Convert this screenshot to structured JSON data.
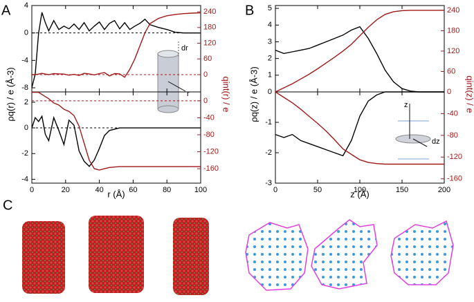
{
  "chart_data": [
    {
      "type": "line",
      "label": "A",
      "xlabel": "r (Å)",
      "ylabel": "ρq(r) / e (Å-3)",
      "y2label": "qint(r) / e",
      "xlim": [
        0,
        100
      ],
      "xticks": [
        0,
        20,
        40,
        60,
        80,
        100
      ],
      "x": [
        0,
        2,
        4,
        6,
        8,
        10,
        13,
        16,
        19,
        22,
        25,
        28,
        31,
        34,
        37,
        40,
        43,
        46,
        49,
        52,
        55,
        58,
        61,
        64,
        67,
        70,
        75,
        80,
        85,
        90,
        95,
        100
      ],
      "inset_labels": [
        "dr",
        "r"
      ],
      "subplots": [
        {
          "ylim": [
            -8.6,
            4
          ],
          "yticks": [
            -8,
            -4,
            0,
            4
          ],
          "y2lim": [
            -66,
            264
          ],
          "y2ticks": [
            0,
            60,
            120,
            180,
            240
          ],
          "hlines": [
            {
              "axis": "y",
              "value": 0,
              "color": "#000000"
            },
            {
              "axis": "y2",
              "value": 0,
              "color": "#a01818"
            }
          ],
          "series": [
            {
              "color": "#000000",
              "values": [
                -8,
                -6,
                0,
                3,
                1.5,
                0.3,
                1.8,
                0.5,
                1,
                0.6,
                1.3,
                0.5,
                1.5,
                0.3,
                1,
                1.6,
                0.5,
                1.4,
                1.8,
                0.6,
                1.5,
                0.5,
                1,
                1.4,
                2,
                1.2,
                0.8,
                0.5,
                0.1,
                0,
                0,
                0
              ]
            },
            {
              "color": "#a01818",
              "axis": "y2",
              "values": [
                0,
                0,
                2,
                5,
                2,
                0,
                4,
                3,
                2,
                -2,
                1,
                -3,
                5,
                3,
                -1,
                4,
                8,
                -5,
                4,
                3,
                -10,
                20,
                60,
                110,
                160,
                195,
                215,
                225,
                230,
                233,
                235,
                236
              ]
            }
          ]
        },
        {
          "ylim": [
            -4.3,
            2.8
          ],
          "yticks": [
            -4,
            -2,
            0,
            2
          ],
          "y2lim": [
            -194,
            21
          ],
          "y2ticks": [
            -160,
            -120,
            -80,
            -40,
            0
          ],
          "hlines": [
            {
              "axis": "y",
              "value": 0,
              "color": "#000000"
            },
            {
              "axis": "y2",
              "value": 0,
              "color": "#a01818"
            }
          ],
          "series": [
            {
              "color": "#000000",
              "values": [
                0,
                0.8,
                0.5,
                0.9,
                -0.5,
                -1,
                0.8,
                -0.2,
                -1.3,
                0.6,
                0.2,
                -1.8,
                -2.6,
                -3,
                -2.5,
                -1.6,
                -0.6,
                -0.2,
                -0.1,
                0,
                0,
                0,
                0,
                0,
                0,
                0,
                0,
                0,
                0,
                0,
                0,
                0
              ]
            },
            {
              "color": "#a01818",
              "axis": "y2",
              "values": [
                20,
                20,
                20,
                15,
                10,
                5,
                -5,
                -10,
                -20,
                -25,
                -35,
                -60,
                -100,
                -140,
                -160,
                -163,
                -160,
                -157,
                -156,
                -155,
                -155,
                -155,
                -155,
                -155,
                -155,
                -155,
                -155,
                -155,
                -155,
                -155,
                -155,
                -155
              ]
            }
          ]
        }
      ]
    },
    {
      "type": "line",
      "label": "B",
      "xlabel": "z (Å)",
      "ylabel": "ρq(z) / e (Å-3)",
      "y2label": "qint(z) / e",
      "xlim": [
        0,
        200
      ],
      "xticks": [
        0,
        50,
        100,
        150,
        200
      ],
      "x": [
        0,
        10,
        20,
        30,
        40,
        50,
        60,
        70,
        80,
        90,
        100,
        110,
        120,
        130,
        140,
        150,
        160,
        170,
        180,
        190,
        200
      ],
      "inset_labels": [
        "z",
        "dz"
      ],
      "subplots": [
        {
          "ylim": [
            0,
            5.17
          ],
          "yticks": [
            0,
            1,
            2,
            3,
            4,
            5
          ],
          "y2lim": [
            0,
            254
          ],
          "y2ticks": [
            0,
            60,
            120,
            180,
            240
          ],
          "hlines": [],
          "series": [
            {
              "color": "#000000",
              "values": [
                2.5,
                2.3,
                2.4,
                2.5,
                2.6,
                2.8,
                3,
                3.2,
                3.4,
                3.7,
                3.9,
                3.2,
                2.3,
                1.3,
                0.6,
                0.2,
                0.05,
                0,
                0,
                0,
                0
              ]
            },
            {
              "color": "#a01818",
              "axis": "y2",
              "values": [
                0,
                12,
                24,
                38,
                52,
                68,
                85,
                102,
                120,
                140,
                165,
                190,
                212,
                228,
                236,
                239,
                240,
                240,
                240,
                240,
                240
              ]
            }
          ]
        },
        {
          "ylim": [
            -3,
            0
          ],
          "yticks": [
            -3,
            -2,
            -1
          ],
          "y2lim": [
            -168,
            0
          ],
          "y2ticks": [
            -160,
            -120,
            -80,
            -40
          ],
          "hlines": [],
          "series": [
            {
              "color": "#000000",
              "values": [
                -1.4,
                -1.5,
                -1.4,
                -1.6,
                -1.7,
                -1.8,
                -1.9,
                -2,
                -2.1,
                -1.6,
                -0.8,
                -0.3,
                -0.1,
                0,
                0,
                0,
                0,
                0,
                0,
                0,
                0
              ]
            },
            {
              "color": "#a01818",
              "axis": "y2",
              "values": [
                0,
                -10,
                -20,
                -32,
                -45,
                -58,
                -72,
                -88,
                -105,
                -115,
                -125,
                -130,
                -132,
                -133,
                -133,
                -133,
                -133,
                -133,
                -133,
                -133,
                -133
              ]
            }
          ]
        }
      ]
    }
  ],
  "panel_c": {
    "label": "C"
  }
}
